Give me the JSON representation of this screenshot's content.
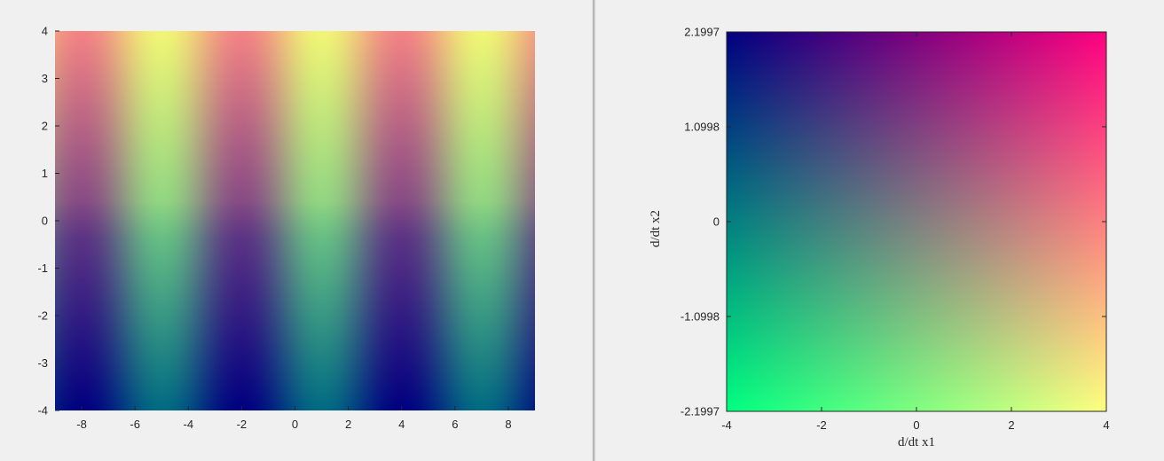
{
  "chart_data": [
    {
      "type": "heatmap",
      "title": "",
      "xlabel": "",
      "ylabel": "",
      "xlim": [
        -9,
        9
      ],
      "ylim": [
        -4,
        4
      ],
      "xticks": [
        -8,
        -6,
        -4,
        -2,
        0,
        2,
        4,
        6,
        8
      ],
      "yticks": [
        -4,
        -3,
        -2,
        -1,
        0,
        1,
        2,
        3,
        4
      ],
      "field": "phase-colored trigonometric field: green/yellow bands near x = -5, 1, 7; purple bands near x = -8, -2, 4; brightness increases with y",
      "colors": {
        "low_dark": "#000080",
        "purple": "#6f3f85",
        "green": "#7ccf85",
        "pink": "#f48484",
        "yellow": "#f2f575"
      }
    },
    {
      "type": "heatmap",
      "title": "",
      "xlabel": "d/dt x1",
      "ylabel": "d/dt x2",
      "xlim": [
        -4,
        4
      ],
      "ylim": [
        -2.1997,
        2.1997
      ],
      "xticks": [
        "-4",
        "-2",
        "0",
        "2",
        "4"
      ],
      "yticks": [
        "-2.1997",
        "-1.0998",
        "0",
        "1.0998",
        "2.1997"
      ],
      "corner_colors": {
        "top_left": "#000080",
        "top_right": "#ff0080",
        "bottom_left": "#00ff80",
        "bottom_right": "#ffff80"
      }
    }
  ]
}
